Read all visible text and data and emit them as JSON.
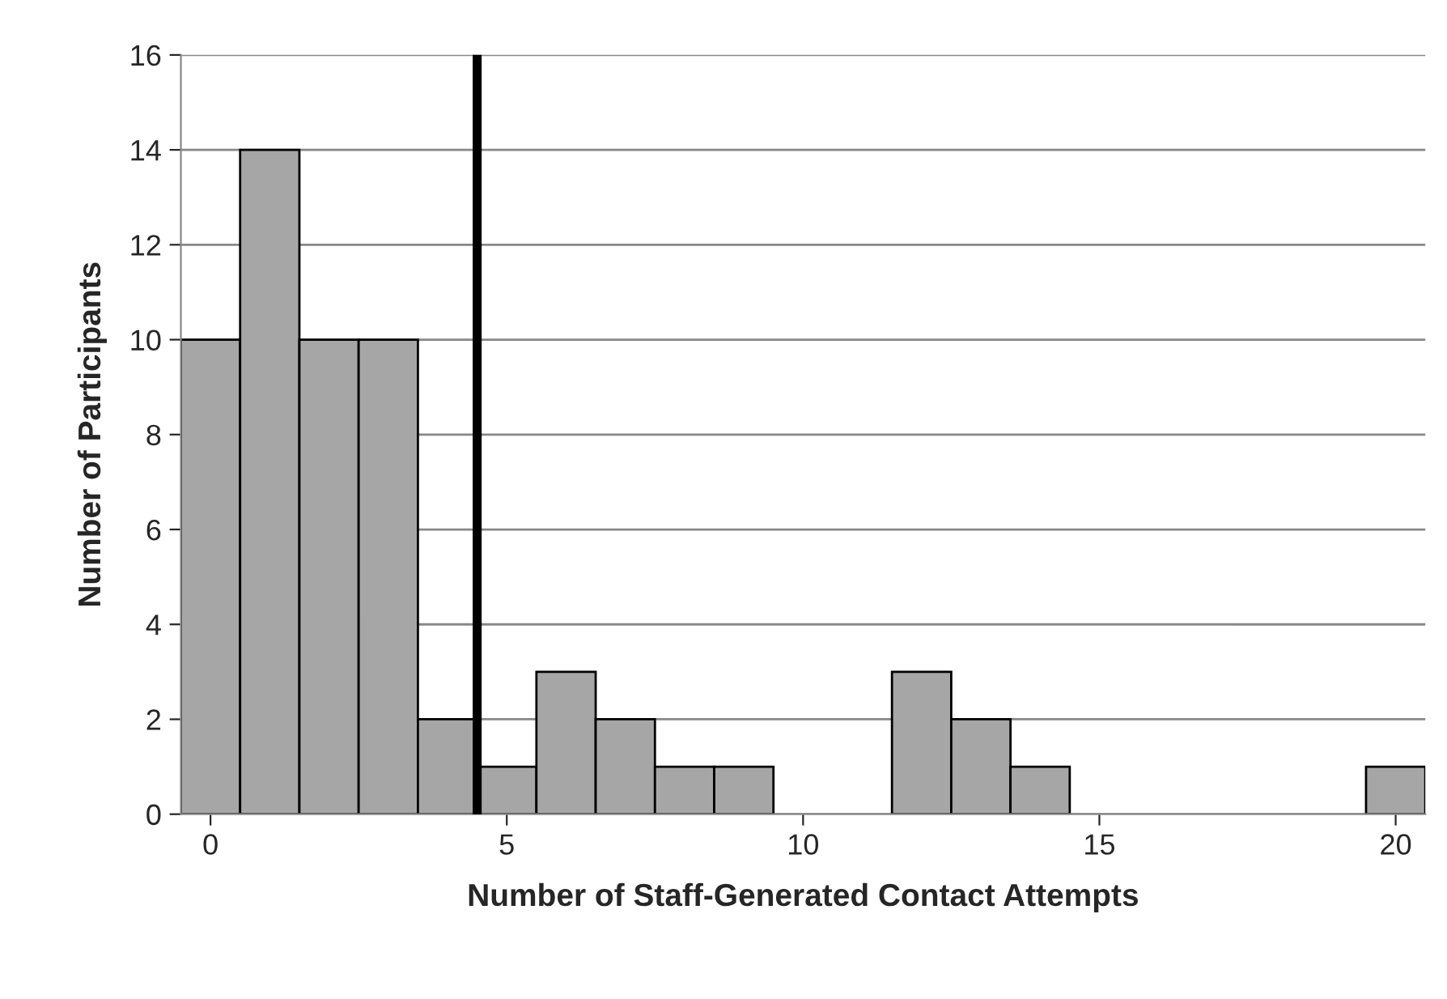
{
  "chart_data": {
    "type": "histogram",
    "xlabel": "Number of Staff-Generated Contact Attempts",
    "ylabel": "Number of Participants",
    "bins": [
      -0.5,
      0.5,
      1.5,
      2.5,
      3.5,
      4.5,
      5.5,
      6.5,
      7.5,
      8.5,
      9.5,
      10.5,
      11.5,
      12.5,
      13.5,
      14.5,
      15.5,
      16.5,
      17.5,
      18.5,
      19.5,
      20.5
    ],
    "values": [
      10,
      14,
      10,
      10,
      2,
      1,
      3,
      2,
      1,
      1,
      0,
      0,
      3,
      2,
      1,
      0,
      0,
      0,
      0,
      0,
      1
    ],
    "color": "#a6a6a6",
    "xlim": [
      -0.5,
      20.5
    ],
    "xticks": [
      0,
      5,
      10,
      15,
      20
    ],
    "ylim": [
      0,
      16
    ],
    "yticks": [
      0,
      2,
      4,
      6,
      8,
      10,
      12,
      14,
      16
    ],
    "ref_lines": [
      {
        "axis": "x",
        "value": 4.5,
        "color": "#000000",
        "line_style": "solid"
      }
    ],
    "grid": "y",
    "legend": false
  }
}
